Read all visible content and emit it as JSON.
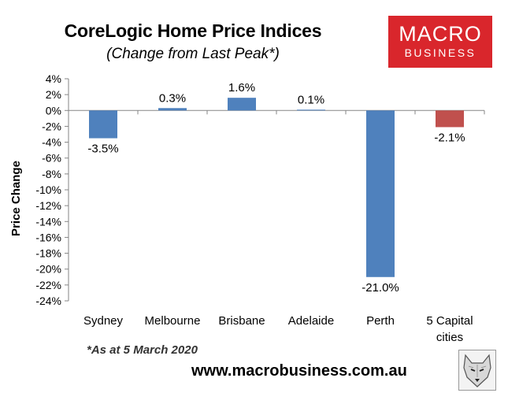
{
  "title": "CoreLogic Home Price Indices",
  "subtitle": "(Change from Last Peak*)",
  "logo": {
    "line1": "MACRO",
    "line2": "BUSINESS"
  },
  "footnote": "*As at 5 March 2020",
  "url": "www.macrobusiness.com.au",
  "colors": {
    "bar_primary": "#4f81bd",
    "bar_highlight": "#c0504d",
    "logo_bg": "#d9262c"
  },
  "chart_data": {
    "type": "bar",
    "title": "CoreLogic Home Price Indices",
    "subtitle": "(Change from Last Peak*)",
    "xlabel": "",
    "ylabel": "Price Change",
    "categories": [
      "Sydney",
      "Melbourne",
      "Brisbane",
      "Adelaide",
      "Perth",
      "5 Capital cities"
    ],
    "category_label_lines": [
      [
        "Sydney"
      ],
      [
        "Melbourne"
      ],
      [
        "Brisbane"
      ],
      [
        "Adelaide"
      ],
      [
        "Perth"
      ],
      [
        "5 Capital",
        "cities"
      ]
    ],
    "values": [
      -3.5,
      0.3,
      1.6,
      0.1,
      -21.0,
      -2.1
    ],
    "data_labels": [
      "-3.5%",
      "0.3%",
      "1.6%",
      "0.1%",
      "-21.0%",
      "-2.1%"
    ],
    "bar_colors": [
      "#4f81bd",
      "#4f81bd",
      "#4f81bd",
      "#4f81bd",
      "#4f81bd",
      "#c0504d"
    ],
    "ylim": [
      -24,
      4
    ],
    "yticks": [
      4,
      2,
      0,
      -2,
      -4,
      -6,
      -8,
      -10,
      -12,
      -14,
      -16,
      -18,
      -20,
      -22,
      -24
    ],
    "ytick_labels": [
      "4%",
      "2%",
      "0%",
      "-2%",
      "-4%",
      "-6%",
      "-8%",
      "-10%",
      "-12%",
      "-14%",
      "-16%",
      "-18%",
      "-20%",
      "-22%",
      "-24%"
    ],
    "grid": false,
    "legend": "none"
  }
}
